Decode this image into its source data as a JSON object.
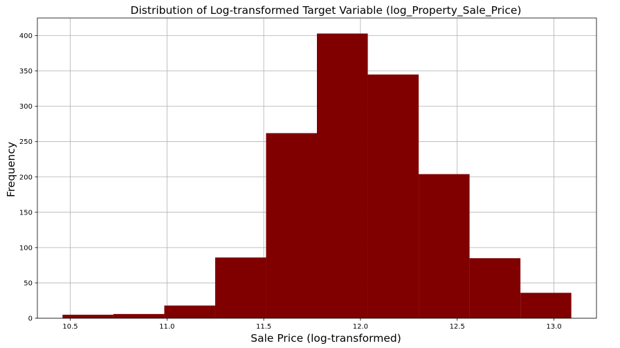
{
  "chart_data": {
    "type": "bar",
    "title": "Distribution of Log-transformed Target Variable (log_Property_Sale_Price)",
    "xlabel": "Sale Price (log-transformed)",
    "ylabel": "Frequency",
    "bin_edges": [
      10.46,
      10.723,
      10.986,
      11.249,
      11.512,
      11.775,
      12.038,
      12.301,
      12.564,
      12.827,
      13.09
    ],
    "values": [
      5,
      6,
      18,
      86,
      262,
      403,
      345,
      204,
      85,
      36
    ],
    "xlim": [
      10.33,
      13.22
    ],
    "ylim": [
      0,
      425
    ],
    "xticks": [
      10.5,
      11.0,
      11.5,
      12.0,
      12.5,
      13.0
    ],
    "xtick_labels": [
      "10.5",
      "11.0",
      "11.5",
      "12.0",
      "12.5",
      "13.0"
    ],
    "yticks": [
      0,
      50,
      100,
      150,
      200,
      250,
      300,
      350,
      400
    ],
    "ytick_labels": [
      "0",
      "50",
      "100",
      "150",
      "200",
      "250",
      "300",
      "350",
      "400"
    ],
    "grid": true,
    "bar_color": "#800000",
    "grid_color": "#b0b0b0"
  }
}
